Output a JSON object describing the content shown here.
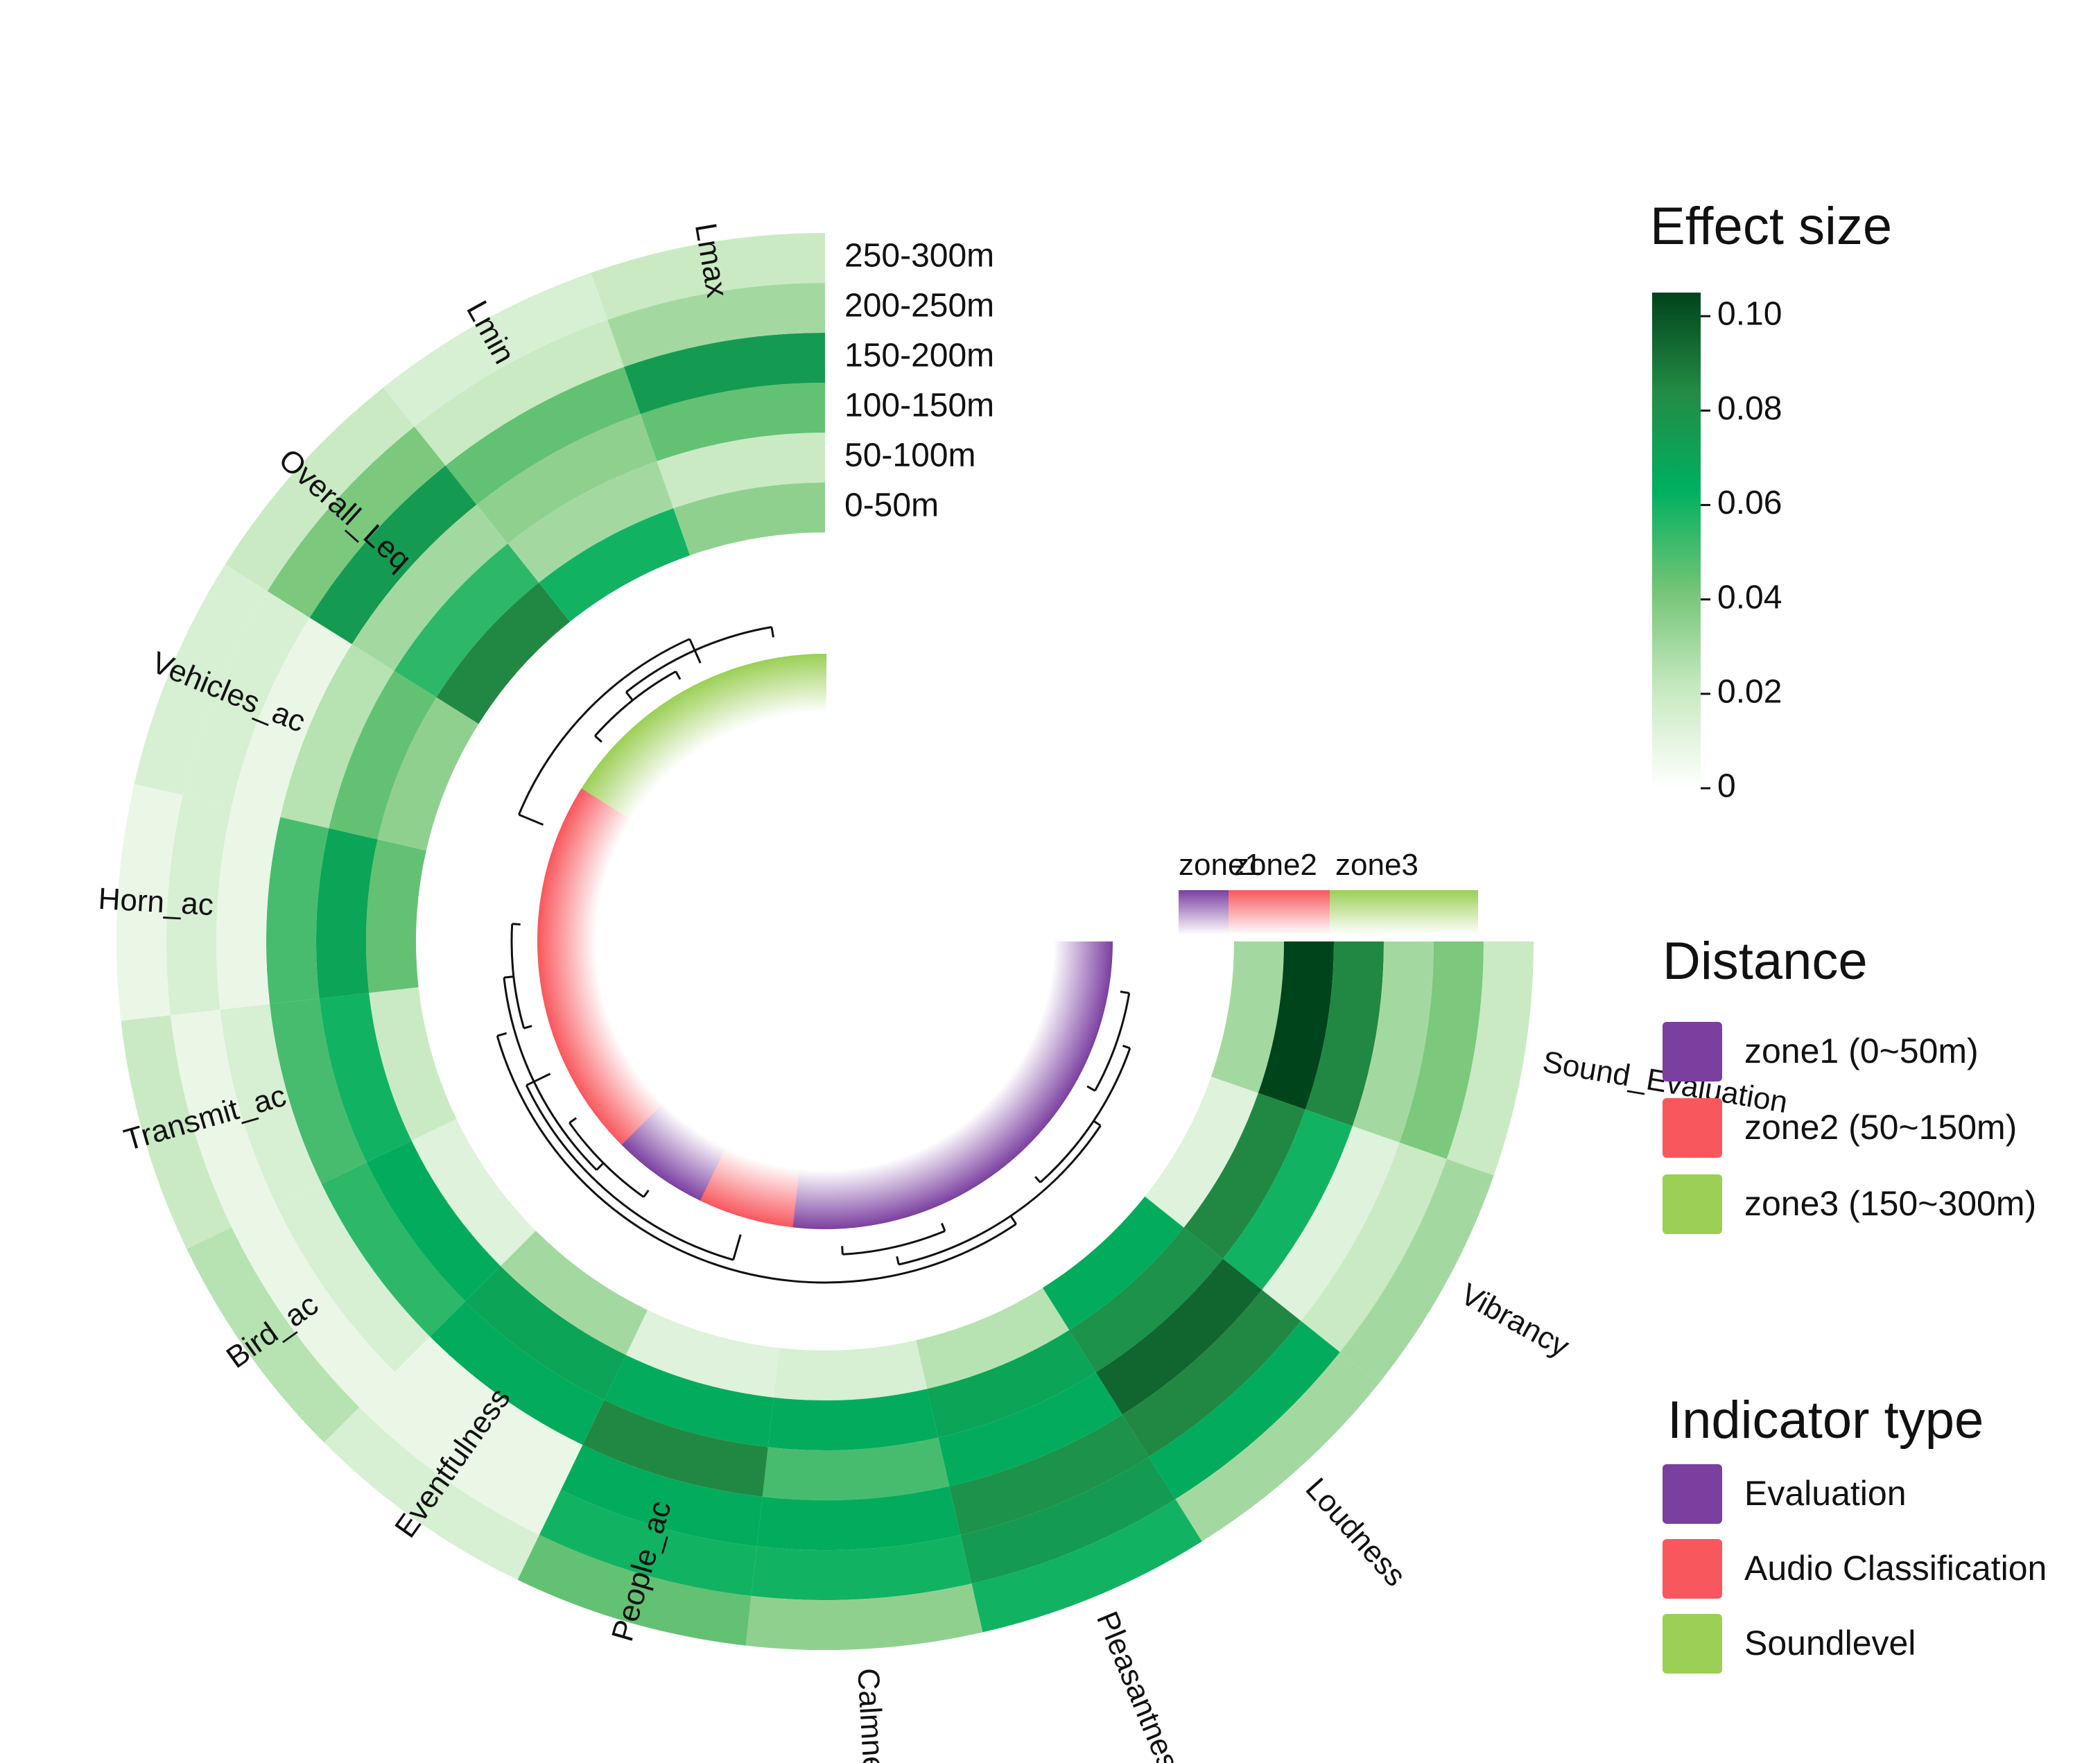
{
  "chart_data": {
    "type": "heatmap",
    "layout": "circular",
    "rings": [
      "0-50m",
      "50-100m",
      "100-150m",
      "150-200m",
      "200-250m",
      "250-300m"
    ],
    "indicators": [
      {
        "name": "Sound_Evaluation",
        "type": "Evaluation",
        "zone": "zone1",
        "values": [
          0.03,
          0.105,
          0.085,
          0.03,
          0.04,
          0.02
        ]
      },
      {
        "name": "Vibrancy",
        "type": "Evaluation",
        "zone": "zone1",
        "values": [
          0.012,
          0.085,
          0.06,
          0.012,
          0.02,
          0.03
        ]
      },
      {
        "name": "Loudness",
        "type": "Evaluation",
        "zone": "zone1",
        "values": [
          0.065,
          0.08,
          0.095,
          0.085,
          0.065,
          0.03
        ]
      },
      {
        "name": "Pleasantness",
        "type": "Evaluation",
        "zone": "zone1",
        "values": [
          0.025,
          0.07,
          0.065,
          0.08,
          0.075,
          0.06
        ]
      },
      {
        "name": "Calmness",
        "type": "Evaluation",
        "zone": "zone1",
        "values": [
          0.015,
          0.065,
          0.05,
          0.065,
          0.06,
          0.035
        ]
      },
      {
        "name": "People_ac",
        "type": "Audio Classification",
        "zone": "zone2",
        "values": [
          0.012,
          0.065,
          0.085,
          0.065,
          0.06,
          0.045
        ]
      },
      {
        "name": "Eventfulness",
        "type": "Evaluation",
        "zone": "zone1",
        "values": [
          0.03,
          0.07,
          0.065,
          0.008,
          0.008,
          0.015
        ]
      },
      {
        "name": "Bird_ac",
        "type": "Audio Classification",
        "zone": "zone2",
        "values": [
          0.012,
          0.065,
          0.055,
          0.015,
          0.008,
          0.025
        ]
      },
      {
        "name": "Transmit_ac",
        "type": "Audio Classification",
        "zone": "zone2",
        "values": [
          0.02,
          0.06,
          0.05,
          0.015,
          0.008,
          0.02
        ]
      },
      {
        "name": "Horn_ac",
        "type": "Audio Classification",
        "zone": "zone2",
        "values": [
          0.045,
          0.07,
          0.05,
          0.008,
          0.015,
          0.008
        ]
      },
      {
        "name": "Vehicles_ac",
        "type": "Audio Classification",
        "zone": "zone2",
        "values": [
          0.035,
          0.045,
          0.025,
          0.008,
          0.015,
          0.015
        ]
      },
      {
        "name": "Overall_Leq",
        "type": "Soundlevel",
        "zone": "zone3",
        "values": [
          0.085,
          0.055,
          0.03,
          0.075,
          0.04,
          0.02
        ]
      },
      {
        "name": "Lmin",
        "type": "Soundlevel",
        "zone": "zone3",
        "values": [
          0.06,
          0.03,
          0.035,
          0.045,
          0.02,
          0.015
        ]
      },
      {
        "name": "Lmax",
        "type": "Soundlevel",
        "zone": "zone3",
        "values": [
          0.035,
          0.02,
          0.045,
          0.075,
          0.03,
          0.02
        ]
      }
    ],
    "colorbar": {
      "title": "Effect size",
      "min": 0,
      "max": 0.105,
      "ticks": [
        "0",
        "0.02",
        "0.04",
        "0.06",
        "0.08",
        "0.10"
      ],
      "tick_values": [
        0,
        0.02,
        0.04,
        0.06,
        0.08,
        0.1
      ],
      "colors": [
        "#ffffff",
        "#c7e9c0",
        "#74c476",
        "#00b060",
        "#238b45",
        "#00441b"
      ]
    },
    "zone_bar_labels": [
      "zone1",
      "zone2",
      "zone3"
    ],
    "legend_distance": {
      "title": "Distance",
      "items": [
        {
          "label": "zone1 (0~50m)",
          "color": "#7b3fa0"
        },
        {
          "label": "zone2 (50~150m)",
          "color": "#f8575d"
        },
        {
          "label": "zone3 (150~300m)",
          "color": "#9bcf55"
        }
      ]
    },
    "legend_indicator": {
      "title": "Indicator type",
      "items": [
        {
          "label": "Evaluation",
          "color": "#7b3fa0"
        },
        {
          "label": "Audio Classification",
          "color": "#f8575d"
        },
        {
          "label": "Soundlevel",
          "color": "#9bcf55"
        }
      ]
    },
    "type_colors": {
      "Evaluation": "#7b3fa0",
      "Audio Classification": "#f8575d",
      "Soundlevel": "#9bcf55"
    }
  }
}
